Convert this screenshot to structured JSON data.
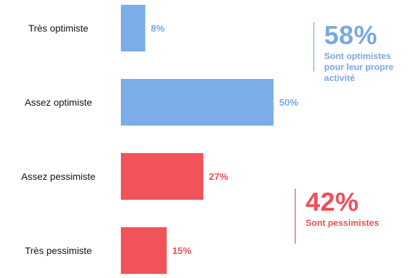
{
  "chart_data": {
    "type": "bar",
    "orientation": "horizontal",
    "categories": [
      "Très optimiste",
      "Assez optimiste",
      "Assez pessimiste",
      "Très pessimiste"
    ],
    "values": [
      8,
      50,
      27,
      15
    ],
    "value_labels": [
      "8%",
      "50%",
      "27%",
      "15%"
    ],
    "unit": "%",
    "xlim": [
      0,
      100
    ],
    "grid": false,
    "legend": "none",
    "colors": [
      "#7baee8",
      "#7baee8",
      "#f0545a",
      "#f0545a"
    ],
    "label_colors": [
      "#7ba7e4",
      "#7ba7e4",
      "#ef4f56",
      "#ef4f56"
    ]
  },
  "summaries": [
    {
      "id": "optimistes",
      "percent": "58%",
      "description": "Sont optimistes pour leur propre activité",
      "color": "#7ba7e4"
    },
    {
      "id": "pessimistes",
      "percent": "42%",
      "description": "Sont pessimistes",
      "color": "#ef4f56"
    }
  ]
}
